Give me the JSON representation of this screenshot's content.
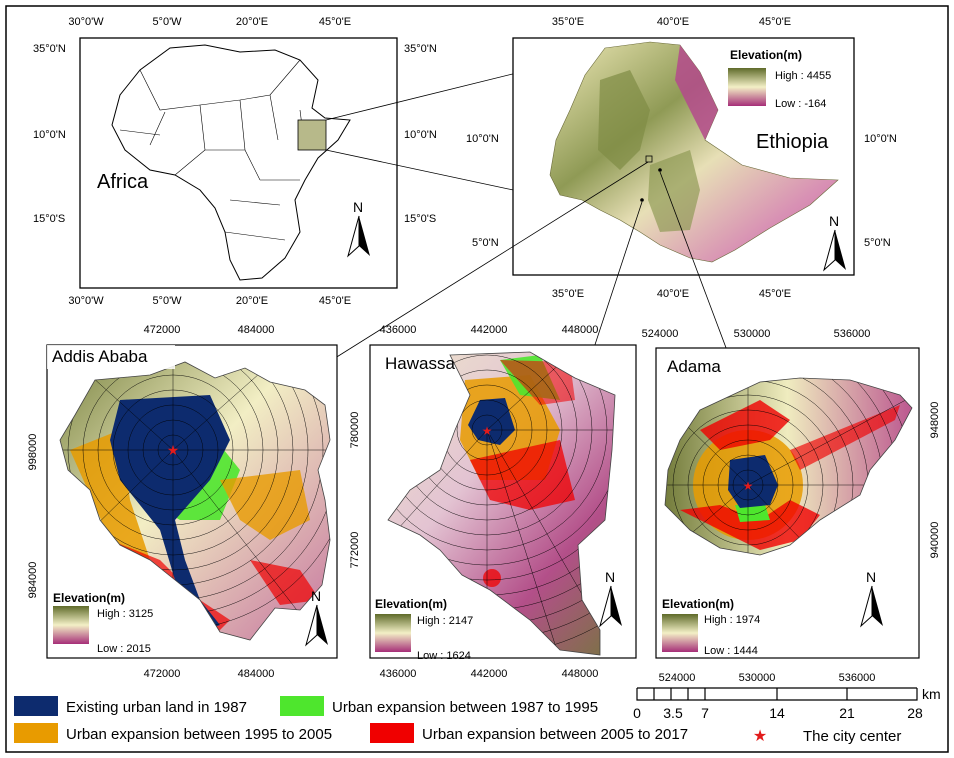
{
  "africa_panel": {
    "label": "Africa",
    "top_ticks": [
      "30°0'W",
      "5°0'W",
      "20°0'E",
      "45°0'E"
    ],
    "bottom_ticks": [
      "30°0'W",
      "5°0'W",
      "20°0'E",
      "45°0'E"
    ],
    "left_ticks": [
      "35°0'N",
      "10°0'N",
      "15°0'S"
    ],
    "right_ticks": [
      "35°0'N",
      "10°0'N",
      "15°0'S"
    ],
    "north_label": "N"
  },
  "ethiopia_panel": {
    "label": "Ethiopia",
    "top_ticks": [
      "35°0'E",
      "40°0'E",
      "45°0'E"
    ],
    "bottom_ticks": [
      "35°0'E",
      "40°0'E",
      "45°0'E"
    ],
    "left_ticks": [
      "10°0'N",
      "5°0'N"
    ],
    "right_ticks": [
      "10°0'N",
      "5°0'N"
    ],
    "legend": {
      "title": "Elevation(m)",
      "high": "High : 4455",
      "low": "Low : -164"
    },
    "north_label": "N"
  },
  "addis_panel": {
    "label": "Addis Ababa",
    "top_ticks": [
      "472000",
      "484000"
    ],
    "bottom_ticks": [
      "472000",
      "484000"
    ],
    "left_ticks": [
      "998000",
      "984000"
    ],
    "legend": {
      "title": "Elevation(m)",
      "high": "High : 3125",
      "low": "Low : 2015"
    },
    "north_label": "N"
  },
  "hawassa_panel": {
    "label": "Hawassa",
    "top_ticks": [
      "436000",
      "442000",
      "448000"
    ],
    "bottom_ticks": [
      "436000",
      "442000",
      "448000"
    ],
    "left_ticks": [
      "780000",
      "772000"
    ],
    "legend": {
      "title": "Elevation(m)",
      "high": "High : 2147",
      "low": "Low : 1624"
    },
    "north_label": "N"
  },
  "adama_panel": {
    "label": "Adama",
    "top_ticks": [
      "524000",
      "530000",
      "536000"
    ],
    "bottom_ticks": [
      "524000",
      "530000",
      "536000"
    ],
    "right_ticks": [
      "948000",
      "940000"
    ],
    "legend": {
      "title": "Elevation(m)",
      "high": "High : 1974",
      "low": "Low : 1444"
    },
    "north_label": "N"
  },
  "legend": {
    "items": [
      {
        "label": "Existing urban land in 1987",
        "color": "#0d2b6e"
      },
      {
        "label": "Urban expansion between 1987 to 1995",
        "color": "#4ee62d"
      },
      {
        "label": "Urban expansion between 1995 to 2005",
        "color": "#e89b00"
      },
      {
        "label": "Urban expansion between 2005 to 2017",
        "color": "#f00000"
      }
    ],
    "city_center": "The city center",
    "city_center_color": "#e21b1b"
  },
  "scalebar": {
    "unit": "km",
    "labels": [
      "0",
      "3.5",
      "7",
      "14",
      "21",
      "28"
    ]
  },
  "colors": {
    "elev_high": "#5f6b2a",
    "elev_mid": "#f1efc4",
    "elev_low": "#a62e78"
  }
}
